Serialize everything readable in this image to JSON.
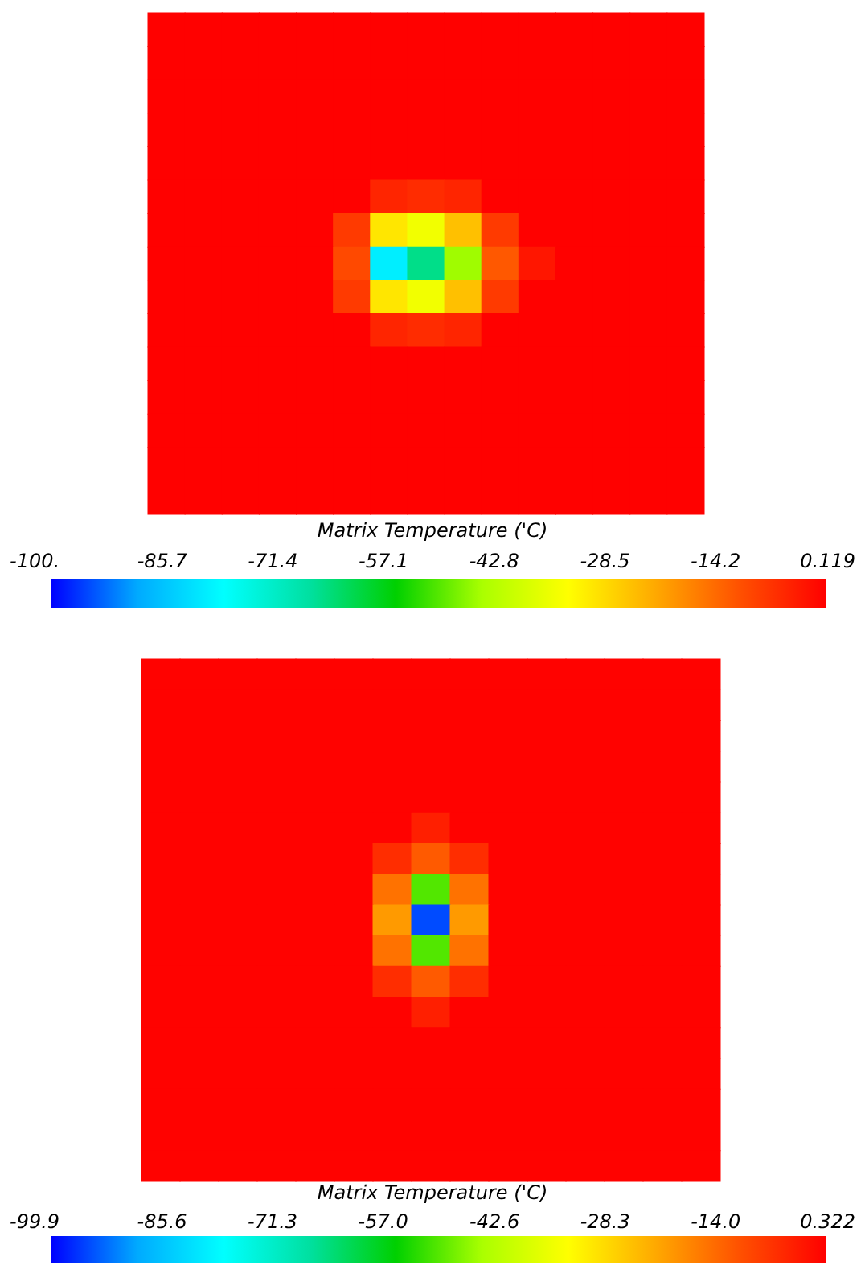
{
  "chart_data": [
    {
      "type": "heatmap",
      "clabel": "Matrix Temperature ('C)",
      "categories": [
        null,
        null,
        null,
        null,
        null,
        null,
        null,
        null,
        null,
        null,
        null,
        null,
        null,
        null,
        null
      ],
      "y_categories": [
        null,
        null,
        null,
        null,
        null,
        null,
        null,
        null,
        null,
        null,
        null,
        null,
        null,
        null,
        null
      ],
      "cells": [
        [
          0,
          0,
          0,
          0,
          0,
          0,
          0,
          0,
          0,
          0,
          0,
          0,
          0,
          0,
          0
        ],
        [
          0,
          0,
          0,
          0,
          0,
          0,
          0,
          0,
          0,
          0,
          0,
          0,
          0,
          0,
          0
        ],
        [
          0,
          0,
          0,
          0,
          0,
          0,
          0,
          0,
          0,
          0,
          0,
          0,
          0,
          0,
          0
        ],
        [
          0,
          0,
          0,
          0,
          0,
          0,
          0,
          0,
          0,
          0,
          0,
          0,
          0,
          0,
          0
        ],
        [
          0,
          0,
          0,
          0,
          0,
          0,
          0,
          0,
          0,
          0,
          0,
          0,
          0,
          0,
          0
        ],
        [
          0,
          0,
          0,
          0,
          0,
          0,
          -5,
          -6,
          -5,
          0,
          0,
          0,
          0,
          0,
          0
        ],
        [
          0,
          0,
          0,
          0,
          0,
          -8,
          -30,
          -35,
          -25,
          -8,
          0,
          0,
          0,
          0,
          0
        ],
        [
          0,
          0,
          0,
          0,
          0,
          -10,
          -80,
          -65,
          -45,
          -12,
          -3,
          0,
          0,
          0,
          0
        ],
        [
          0,
          0,
          0,
          0,
          0,
          -8,
          -30,
          -35,
          -25,
          -8,
          0,
          0,
          0,
          0,
          0
        ],
        [
          0,
          0,
          0,
          0,
          0,
          0,
          -5,
          -6,
          -5,
          0,
          0,
          0,
          0,
          0,
          0
        ],
        [
          0,
          0,
          0,
          0,
          0,
          0,
          0,
          0,
          0,
          0,
          0,
          0,
          0,
          0,
          0
        ],
        [
          0,
          0,
          0,
          0,
          0,
          0,
          0,
          0,
          0,
          0,
          0,
          0,
          0,
          0,
          0
        ],
        [
          0,
          0,
          0,
          0,
          0,
          0,
          0,
          0,
          0,
          0,
          0,
          0,
          0,
          0,
          0
        ],
        [
          0,
          0,
          0,
          0,
          0,
          0,
          0,
          0,
          0,
          0,
          0,
          0,
          0,
          0,
          0
        ],
        [
          0,
          0,
          0,
          0,
          0,
          0,
          0,
          0,
          0,
          0,
          0,
          0,
          0,
          0,
          0
        ]
      ],
      "clim": [
        -100,
        0.119
      ],
      "cticks": [
        {
          "value": -100,
          "label": "-100."
        },
        -85.7,
        -71.4,
        -57.1,
        -42.8,
        -28.5,
        -14.2,
        0.119
      ]
    },
    {
      "type": "heatmap",
      "clabel": "Matrix Temperature ('C)",
      "categories": [
        null,
        null,
        null,
        null,
        null,
        null,
        null,
        null,
        null,
        null,
        null,
        null,
        null,
        null,
        null
      ],
      "y_categories": [
        null,
        null,
        null,
        null,
        null,
        null,
        null,
        null,
        null,
        null,
        null,
        null,
        null,
        null,
        null,
        null,
        null
      ],
      "cells": [
        [
          0,
          0,
          0,
          0,
          0,
          0,
          0,
          0,
          0,
          0,
          0,
          0,
          0,
          0,
          0
        ],
        [
          0,
          0,
          0,
          0,
          0,
          0,
          0,
          0,
          0,
          0,
          0,
          0,
          0,
          0,
          0
        ],
        [
          0,
          0,
          0,
          0,
          0,
          0,
          0,
          0,
          0,
          0,
          0,
          0,
          0,
          0,
          0
        ],
        [
          0,
          0,
          0,
          0,
          0,
          0,
          0,
          0,
          0,
          0,
          0,
          0,
          0,
          0,
          0
        ],
        [
          0,
          0,
          0,
          0,
          0,
          0,
          0,
          0,
          0,
          0,
          0,
          0,
          0,
          0,
          0
        ],
        [
          0,
          0,
          0,
          0,
          0,
          0,
          0,
          -4,
          0,
          0,
          0,
          0,
          0,
          0,
          0
        ],
        [
          0,
          0,
          0,
          0,
          0,
          0,
          -6,
          -12,
          -6,
          0,
          0,
          0,
          0,
          0,
          0
        ],
        [
          0,
          0,
          0,
          0,
          0,
          0,
          -15,
          -50,
          -15,
          0,
          0,
          0,
          0,
          0,
          0
        ],
        [
          0,
          0,
          0,
          0,
          0,
          0,
          -20,
          -95,
          -20,
          0,
          0,
          0,
          0,
          0,
          0
        ],
        [
          0,
          0,
          0,
          0,
          0,
          0,
          -15,
          -50,
          -15,
          0,
          0,
          0,
          0,
          0,
          0
        ],
        [
          0,
          0,
          0,
          0,
          0,
          0,
          -6,
          -12,
          -6,
          0,
          0,
          0,
          0,
          0,
          0
        ],
        [
          0,
          0,
          0,
          0,
          0,
          0,
          0,
          -4,
          0,
          0,
          0,
          0,
          0,
          0,
          0
        ],
        [
          0,
          0,
          0,
          0,
          0,
          0,
          0,
          0,
          0,
          0,
          0,
          0,
          0,
          0,
          0
        ],
        [
          0,
          0,
          0,
          0,
          0,
          0,
          0,
          0,
          0,
          0,
          0,
          0,
          0,
          0,
          0
        ],
        [
          0,
          0,
          0,
          0,
          0,
          0,
          0,
          0,
          0,
          0,
          0,
          0,
          0,
          0,
          0
        ],
        [
          0,
          0,
          0,
          0,
          0,
          0,
          0,
          0,
          0,
          0,
          0,
          0,
          0,
          0,
          0
        ],
        [
          0,
          0,
          0,
          0,
          0,
          0,
          0,
          0,
          0,
          0,
          0,
          0,
          0,
          0,
          0
        ]
      ],
      "clim": [
        -99.9,
        0.322
      ],
      "cticks": [
        -99.9,
        -85.6,
        -71.3,
        {
          "value": -57.0,
          "label": "-57.0"
        },
        -42.6,
        -28.3,
        {
          "value": -14.0,
          "label": "-14.0"
        },
        0.322
      ]
    }
  ]
}
